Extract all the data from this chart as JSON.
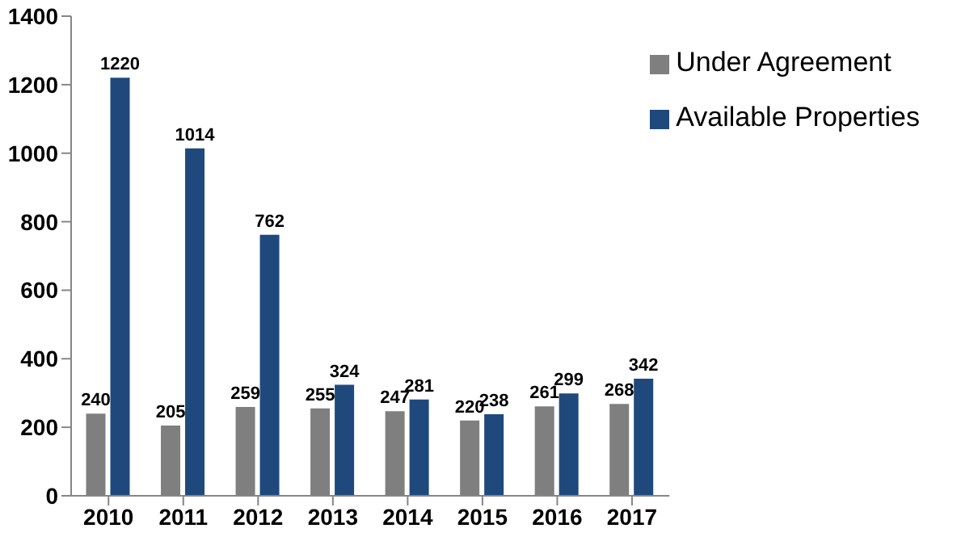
{
  "chart_data": {
    "type": "bar",
    "categories": [
      "2010",
      "2011",
      "2012",
      "2013",
      "2014",
      "2015",
      "2016",
      "2017"
    ],
    "series": [
      {
        "name": "Under Agreement",
        "color": "#7f7f7f",
        "values": [
          240,
          205,
          259,
          255,
          247,
          220,
          261,
          268
        ]
      },
      {
        "name": "Available Properties",
        "color": "#1f497d",
        "values": [
          1220,
          1014,
          762,
          324,
          281,
          238,
          299,
          342
        ]
      }
    ],
    "ylim": [
      0,
      1400
    ],
    "yticks": [
      0,
      200,
      400,
      600,
      800,
      1000,
      1200,
      1400
    ],
    "grid": false,
    "legend": "top right",
    "data_labels": true
  }
}
